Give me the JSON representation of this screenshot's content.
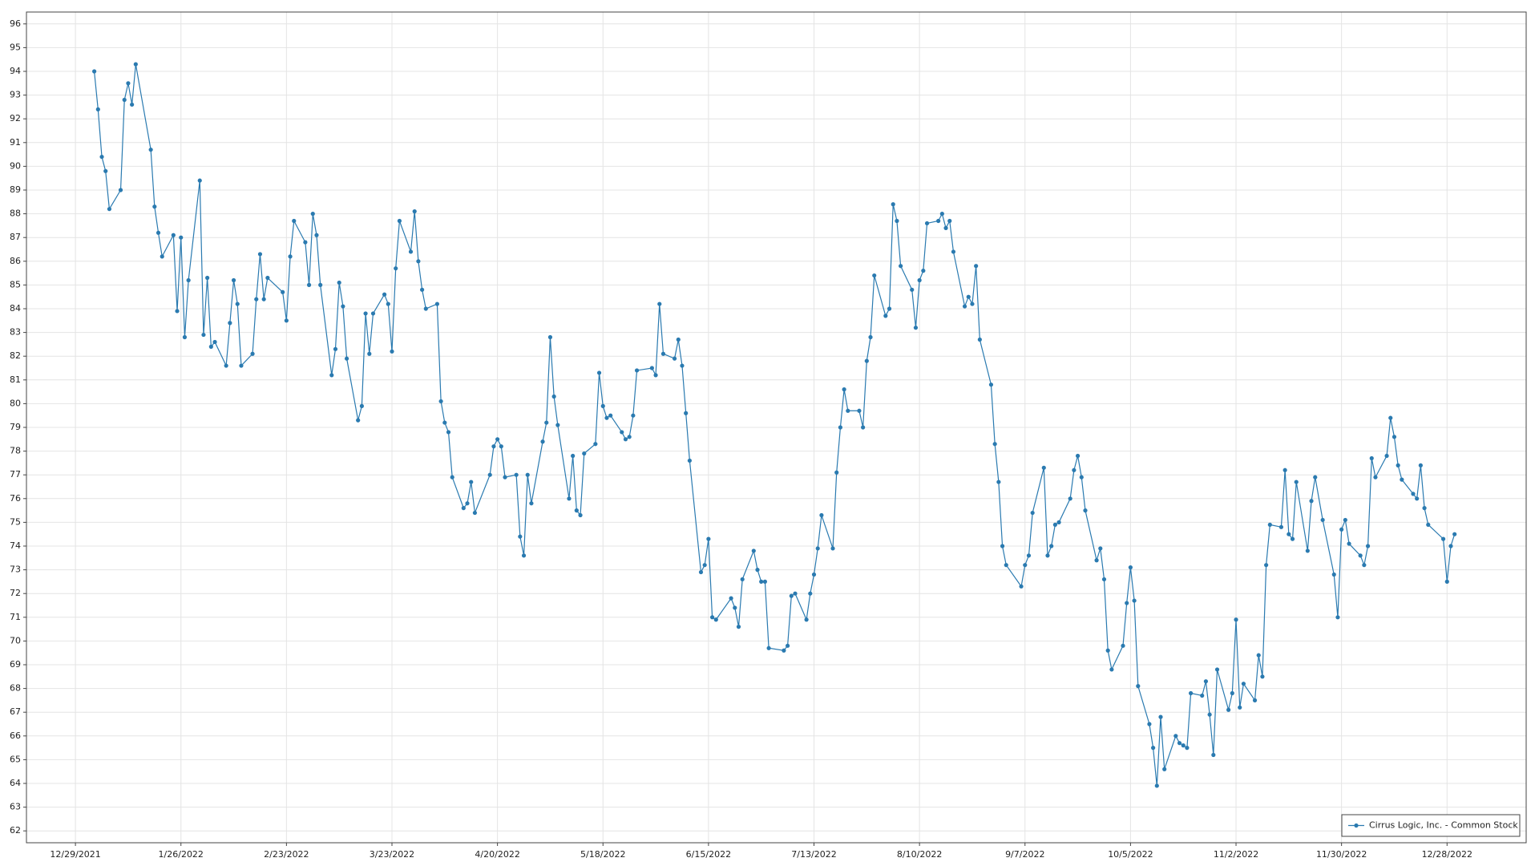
{
  "chart_data": {
    "type": "line",
    "x": [
      "1/3/2022",
      "1/4/2022",
      "1/5/2022",
      "1/6/2022",
      "1/7/2022",
      "1/10/2022",
      "1/11/2022",
      "1/12/2022",
      "1/13/2022",
      "1/14/2022",
      "1/18/2022",
      "1/19/2022",
      "1/20/2022",
      "1/21/2022",
      "1/24/2022",
      "1/25/2022",
      "1/26/2022",
      "1/27/2022",
      "1/28/2022",
      "1/31/2022",
      "2/1/2022",
      "2/2/2022",
      "2/3/2022",
      "2/4/2022",
      "2/7/2022",
      "2/8/2022",
      "2/9/2022",
      "2/10/2022",
      "2/11/2022",
      "2/14/2022",
      "2/15/2022",
      "2/16/2022",
      "2/17/2022",
      "2/18/2022",
      "2/22/2022",
      "2/23/2022",
      "2/24/2022",
      "2/25/2022",
      "2/28/2022",
      "3/1/2022",
      "3/2/2022",
      "3/3/2022",
      "3/4/2022",
      "3/7/2022",
      "3/8/2022",
      "3/9/2022",
      "3/10/2022",
      "3/11/2022",
      "3/14/2022",
      "3/15/2022",
      "3/16/2022",
      "3/17/2022",
      "3/18/2022",
      "3/21/2022",
      "3/22/2022",
      "3/23/2022",
      "3/24/2022",
      "3/25/2022",
      "3/28/2022",
      "3/29/2022",
      "3/30/2022",
      "3/31/2022",
      "4/1/2022",
      "4/4/2022",
      "4/5/2022",
      "4/6/2022",
      "4/7/2022",
      "4/8/2022",
      "4/11/2022",
      "4/12/2022",
      "4/13/2022",
      "4/14/2022",
      "4/18/2022",
      "4/19/2022",
      "4/20/2022",
      "4/21/2022",
      "4/22/2022",
      "4/25/2022",
      "4/26/2022",
      "4/27/2022",
      "4/28/2022",
      "4/29/2022",
      "5/2/2022",
      "5/3/2022",
      "5/4/2022",
      "5/5/2022",
      "5/6/2022",
      "5/9/2022",
      "5/10/2022",
      "5/11/2022",
      "5/12/2022",
      "5/13/2022",
      "5/16/2022",
      "5/17/2022",
      "5/18/2022",
      "5/19/2022",
      "5/20/2022",
      "5/23/2022",
      "5/24/2022",
      "5/25/2022",
      "5/26/2022",
      "5/27/2022",
      "5/31/2022",
      "6/1/2022",
      "6/2/2022",
      "6/3/2022",
      "6/6/2022",
      "6/7/2022",
      "6/8/2022",
      "6/9/2022",
      "6/10/2022",
      "6/13/2022",
      "6/14/2022",
      "6/15/2022",
      "6/16/2022",
      "6/17/2022",
      "6/21/2022",
      "6/22/2022",
      "6/23/2022",
      "6/24/2022",
      "6/27/2022",
      "6/28/2022",
      "6/29/2022",
      "6/30/2022",
      "7/1/2022",
      "7/5/2022",
      "7/6/2022",
      "7/7/2022",
      "7/8/2022",
      "7/11/2022",
      "7/12/2022",
      "7/13/2022",
      "7/14/2022",
      "7/15/2022",
      "7/18/2022",
      "7/19/2022",
      "7/20/2022",
      "7/21/2022",
      "7/22/2022",
      "7/25/2022",
      "7/26/2022",
      "7/27/2022",
      "7/28/2022",
      "7/29/2022",
      "8/1/2022",
      "8/2/2022",
      "8/3/2022",
      "8/4/2022",
      "8/5/2022",
      "8/8/2022",
      "8/9/2022",
      "8/10/2022",
      "8/11/2022",
      "8/12/2022",
      "8/15/2022",
      "8/16/2022",
      "8/17/2022",
      "8/18/2022",
      "8/19/2022",
      "8/22/2022",
      "8/23/2022",
      "8/24/2022",
      "8/25/2022",
      "8/26/2022",
      "8/29/2022",
      "8/30/2022",
      "8/31/2022",
      "9/1/2022",
      "9/2/2022",
      "9/6/2022",
      "9/7/2022",
      "9/8/2022",
      "9/9/2022",
      "9/12/2022",
      "9/13/2022",
      "9/14/2022",
      "9/15/2022",
      "9/16/2022",
      "9/19/2022",
      "9/20/2022",
      "9/21/2022",
      "9/22/2022",
      "9/23/2022",
      "9/26/2022",
      "9/27/2022",
      "9/28/2022",
      "9/29/2022",
      "9/30/2022",
      "10/3/2022",
      "10/4/2022",
      "10/5/2022",
      "10/6/2022",
      "10/7/2022",
      "10/10/2022",
      "10/11/2022",
      "10/12/2022",
      "10/13/2022",
      "10/14/2022",
      "10/17/2022",
      "10/18/2022",
      "10/19/2022",
      "10/20/2022",
      "10/21/2022",
      "10/24/2022",
      "10/25/2022",
      "10/26/2022",
      "10/27/2022",
      "10/28/2022",
      "10/31/2022",
      "11/1/2022",
      "11/2/2022",
      "11/3/2022",
      "11/4/2022",
      "11/7/2022",
      "11/8/2022",
      "11/9/2022",
      "11/10/2022",
      "11/11/2022",
      "11/14/2022",
      "11/15/2022",
      "11/16/2022",
      "11/17/2022",
      "11/18/2022",
      "11/21/2022",
      "11/22/2022",
      "11/23/2022",
      "11/25/2022",
      "11/28/2022",
      "11/29/2022",
      "11/30/2022",
      "12/1/2022",
      "12/2/2022",
      "12/5/2022",
      "12/6/2022",
      "12/7/2022",
      "12/8/2022",
      "12/9/2022",
      "12/12/2022",
      "12/13/2022",
      "12/14/2022",
      "12/15/2022",
      "12/16/2022",
      "12/19/2022",
      "12/20/2022",
      "12/21/2022",
      "12/22/2022",
      "12/23/2022",
      "12/27/2022",
      "12/28/2022",
      "12/29/2022",
      "12/30/2022"
    ],
    "series": [
      {
        "name": "Cirrus Logic, Inc. - Common Stock",
        "color": "#2a7ab0",
        "values": [
          94.0,
          92.4,
          90.4,
          89.8,
          88.2,
          89.0,
          92.8,
          93.5,
          92.6,
          94.3,
          90.7,
          88.3,
          87.2,
          86.2,
          87.1,
          83.9,
          87.0,
          82.8,
          85.2,
          89.4,
          82.9,
          85.3,
          82.4,
          82.6,
          81.6,
          83.4,
          85.2,
          84.2,
          81.6,
          82.1,
          84.4,
          86.3,
          84.4,
          85.3,
          84.7,
          83.5,
          86.2,
          87.7,
          86.8,
          85.0,
          88.0,
          87.1,
          85.0,
          81.2,
          82.3,
          85.1,
          84.1,
          81.9,
          79.3,
          79.9,
          83.8,
          82.1,
          83.8,
          84.6,
          84.2,
          82.2,
          85.7,
          87.7,
          86.4,
          88.1,
          86.0,
          84.8,
          84.0,
          84.2,
          80.1,
          79.2,
          78.8,
          76.9,
          75.6,
          75.8,
          76.7,
          75.4,
          77.0,
          78.2,
          78.5,
          78.2,
          76.9,
          77.0,
          74.4,
          73.6,
          77.0,
          75.8,
          78.4,
          79.2,
          82.8,
          80.3,
          79.1,
          76.0,
          77.8,
          75.5,
          75.3,
          77.9,
          78.3,
          81.3,
          79.9,
          79.4,
          79.5,
          78.8,
          78.5,
          78.6,
          79.5,
          81.4,
          81.5,
          81.2,
          84.2,
          82.1,
          81.9,
          82.7,
          81.6,
          79.6,
          77.6,
          72.9,
          73.2,
          74.3,
          71.0,
          70.9,
          71.8,
          71.4,
          70.6,
          72.6,
          73.8,
          73.0,
          72.5,
          72.5,
          69.7,
          69.6,
          69.8,
          71.9,
          72.0,
          70.9,
          72.0,
          72.8,
          73.9,
          75.3,
          73.9,
          77.1,
          79.0,
          80.6,
          79.7,
          79.7,
          79.0,
          81.8,
          82.8,
          85.4,
          83.7,
          84.0,
          88.4,
          87.7,
          85.8,
          84.8,
          83.2,
          85.2,
          85.6,
          87.6,
          87.7,
          88.0,
          87.4,
          87.7,
          86.4,
          84.1,
          84.5,
          84.2,
          85.8,
          82.7,
          80.8,
          78.3,
          76.7,
          74.0,
          73.2,
          72.3,
          73.2,
          73.6,
          75.4,
          77.3,
          73.6,
          74.0,
          74.9,
          75.0,
          76.0,
          77.2,
          77.8,
          76.9,
          75.5,
          73.4,
          73.9,
          72.6,
          69.6,
          68.8,
          69.8,
          71.6,
          73.1,
          71.7,
          68.1,
          66.5,
          65.5,
          63.9,
          66.8,
          64.6,
          66.0,
          65.7,
          65.6,
          65.5,
          67.8,
          67.7,
          68.3,
          66.9,
          65.2,
          68.8,
          67.1,
          67.8,
          70.9,
          67.2,
          68.2,
          67.5,
          69.4,
          68.5,
          73.2,
          74.9,
          74.8,
          77.2,
          74.5,
          74.3,
          76.7,
          73.8,
          75.9,
          76.9,
          75.1,
          72.8,
          71.0,
          74.7,
          75.1,
          74.1,
          73.6,
          73.2,
          74.0,
          77.7,
          76.9,
          77.8,
          79.4,
          78.6,
          77.4,
          76.8,
          76.2,
          76.0,
          77.4,
          75.6,
          74.9,
          74.3,
          72.5,
          74.0,
          74.5
        ]
      }
    ],
    "xlim": [
      "12/16/2021",
      "1/18/2023"
    ],
    "xticks": [
      "12/29/2021",
      "1/26/2022",
      "2/23/2022",
      "3/23/2022",
      "4/20/2022",
      "5/18/2022",
      "6/15/2022",
      "7/13/2022",
      "8/10/2022",
      "9/7/2022",
      "10/5/2022",
      "11/2/2022",
      "11/30/2022",
      "12/28/2022"
    ],
    "ylim": [
      61.5,
      96.5
    ],
    "yticks": [
      62,
      63,
      64,
      65,
      66,
      67,
      68,
      69,
      70,
      71,
      72,
      73,
      74,
      75,
      76,
      77,
      78,
      79,
      80,
      81,
      82,
      83,
      84,
      85,
      86,
      87,
      88,
      89,
      90,
      91,
      92,
      93,
      94,
      95,
      96
    ],
    "grid": true,
    "legend": "lower right"
  }
}
